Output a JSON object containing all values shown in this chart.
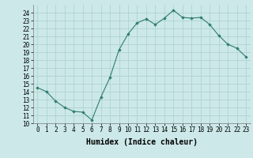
{
  "x": [
    0,
    1,
    2,
    3,
    4,
    5,
    6,
    7,
    8,
    9,
    10,
    11,
    12,
    13,
    14,
    15,
    16,
    17,
    18,
    19,
    20,
    21,
    22,
    23
  ],
  "y": [
    14.5,
    14.0,
    12.8,
    12.0,
    11.5,
    11.4,
    10.4,
    13.3,
    15.8,
    19.3,
    21.3,
    22.7,
    23.2,
    22.5,
    23.3,
    24.3,
    23.4,
    23.3,
    23.4,
    22.5,
    21.1,
    20.0,
    19.5,
    18.4
  ],
  "xlabel": "Humidex (Indice chaleur)",
  "ylim": [
    10,
    25
  ],
  "xlim": [
    -0.5,
    23.5
  ],
  "yticks": [
    10,
    11,
    12,
    13,
    14,
    15,
    16,
    17,
    18,
    19,
    20,
    21,
    22,
    23,
    24
  ],
  "xticks": [
    0,
    1,
    2,
    3,
    4,
    5,
    6,
    7,
    8,
    9,
    10,
    11,
    12,
    13,
    14,
    15,
    16,
    17,
    18,
    19,
    20,
    21,
    22,
    23
  ],
  "line_color": "#2e7d6e",
  "marker": "D",
  "marker_size": 1.8,
  "bg_color": "#cce8e8",
  "grid_color": "#aacfcf",
  "xlabel_fontsize": 7,
  "tick_fontsize": 5.5
}
